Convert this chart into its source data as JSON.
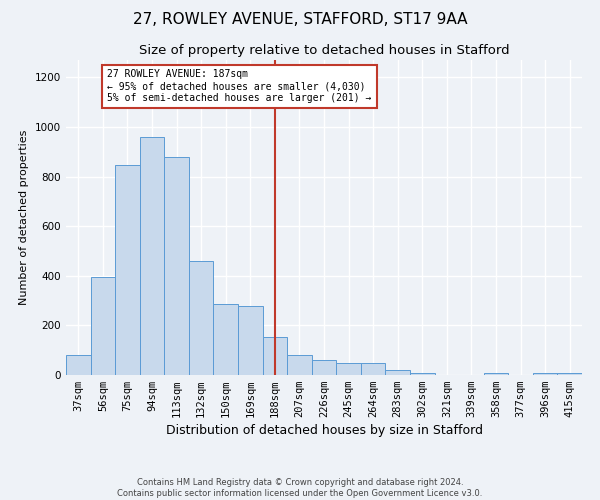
{
  "title": "27, ROWLEY AVENUE, STAFFORD, ST17 9AA",
  "subtitle": "Size of property relative to detached houses in Stafford",
  "xlabel": "Distribution of detached houses by size in Stafford",
  "ylabel": "Number of detached properties",
  "categories": [
    "37sqm",
    "56sqm",
    "75sqm",
    "94sqm",
    "113sqm",
    "132sqm",
    "150sqm",
    "169sqm",
    "188sqm",
    "207sqm",
    "226sqm",
    "245sqm",
    "264sqm",
    "283sqm",
    "302sqm",
    "321sqm",
    "339sqm",
    "358sqm",
    "377sqm",
    "396sqm",
    "415sqm"
  ],
  "values": [
    80,
    395,
    845,
    960,
    880,
    460,
    285,
    280,
    155,
    80,
    60,
    50,
    50,
    20,
    10,
    0,
    0,
    10,
    0,
    10,
    10
  ],
  "bar_color": "#c8d9ec",
  "bar_edge_color": "#5b9bd5",
  "vline_x_index": 8,
  "vline_color": "#c0392b",
  "annotation_text": "27 ROWLEY AVENUE: 187sqm\n← 95% of detached houses are smaller (4,030)\n5% of semi-detached houses are larger (201) →",
  "annotation_box_color": "#c0392b",
  "ylim": [
    0,
    1270
  ],
  "yticks": [
    0,
    200,
    400,
    600,
    800,
    1000,
    1200
  ],
  "footer1": "Contains HM Land Registry data © Crown copyright and database right 2024.",
  "footer2": "Contains public sector information licensed under the Open Government Licence v3.0.",
  "background_color": "#eef2f7",
  "grid_color": "#ffffff",
  "title_fontsize": 11,
  "subtitle_fontsize": 9.5,
  "tick_fontsize": 7.5,
  "ylabel_fontsize": 8,
  "xlabel_fontsize": 9
}
